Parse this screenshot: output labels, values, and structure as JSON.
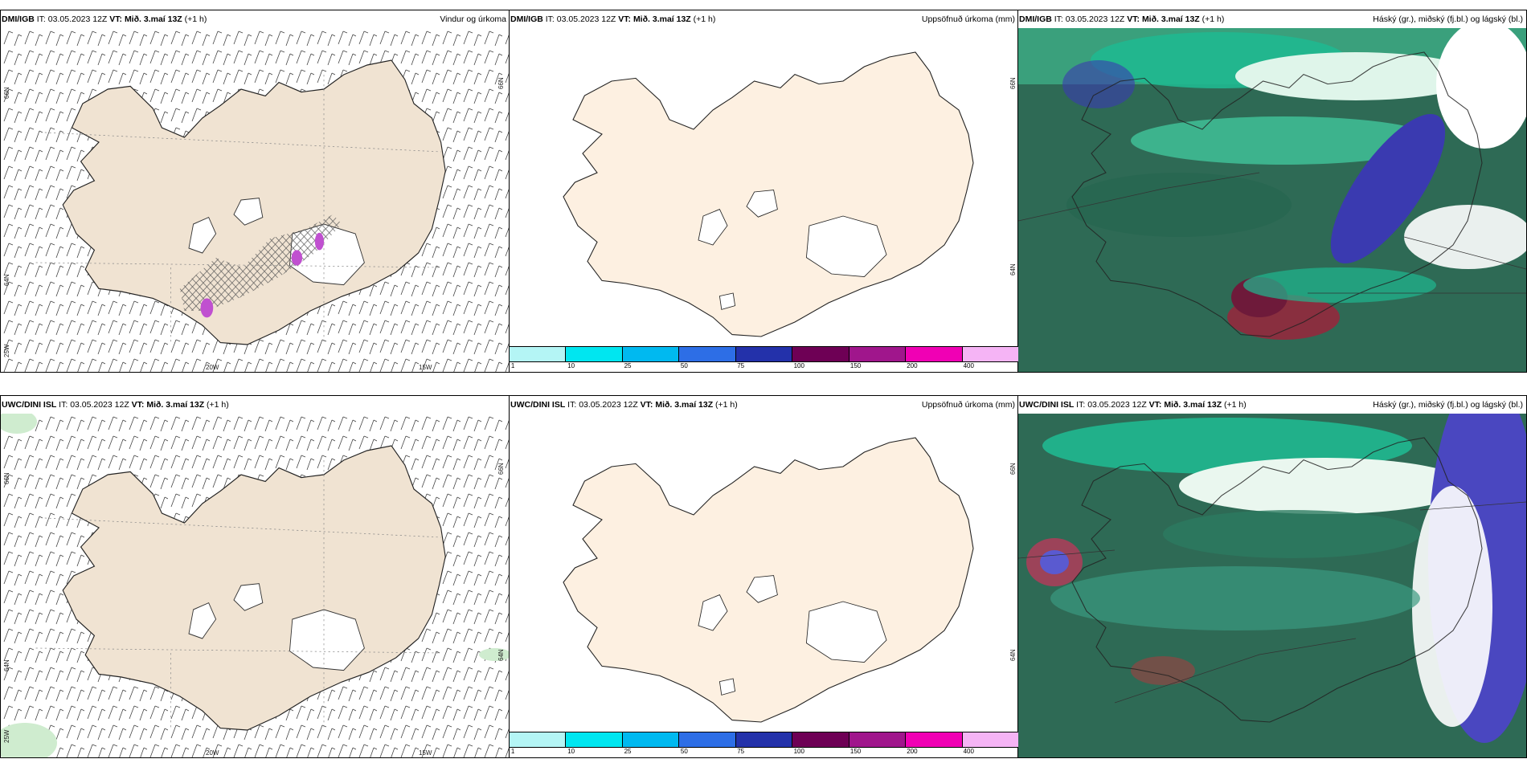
{
  "rows": [
    {
      "source": "DMI/IGB",
      "it_label": "IT:",
      "it_value": "03.05.2023 12Z",
      "vt_label": "VT:",
      "vt_value": "Mið. 3.maí 13Z",
      "offset": "(+1 h)"
    },
    {
      "source": "UWC/DINI ISL",
      "it_label": "IT:",
      "it_value": "03.05.2023 12Z",
      "vt_label": "VT:",
      "vt_value": "Mið. 3.maí 13Z",
      "offset": "(+1 h)"
    }
  ],
  "panel_titles": {
    "wind": "Vindur og úrkoma",
    "precip": "Uppsöfnuð úrkoma (mm)",
    "cloud": "Háský (gr.), miðský (fj.bl.) og lágský (bl.)"
  },
  "axis_labels": {
    "lat66": "66N",
    "lat64": "64N",
    "lon25": "25W",
    "lon20": "20W",
    "lon15": "15W"
  },
  "colorbar": {
    "colors": [
      "#b4f5f5",
      "#00e6f0",
      "#00b9f0",
      "#2d6ee6",
      "#2331aa",
      "#6e0055",
      "#a0168c",
      "#f000b4",
      "#f5b4f5"
    ],
    "ticks": [
      "1",
      "10",
      "25",
      "50",
      "75",
      "100",
      "150",
      "200",
      "400"
    ]
  },
  "colors": {
    "land_wind": "#f0e3d2",
    "land_precip": "#fdf0e1",
    "precip_purple": "#c050d0",
    "cloud_green": "#20b890",
    "cloud_dark": "#2e6a55",
    "cloud_blue": "#3a3ab0",
    "cloud_red": "#a0203a"
  }
}
